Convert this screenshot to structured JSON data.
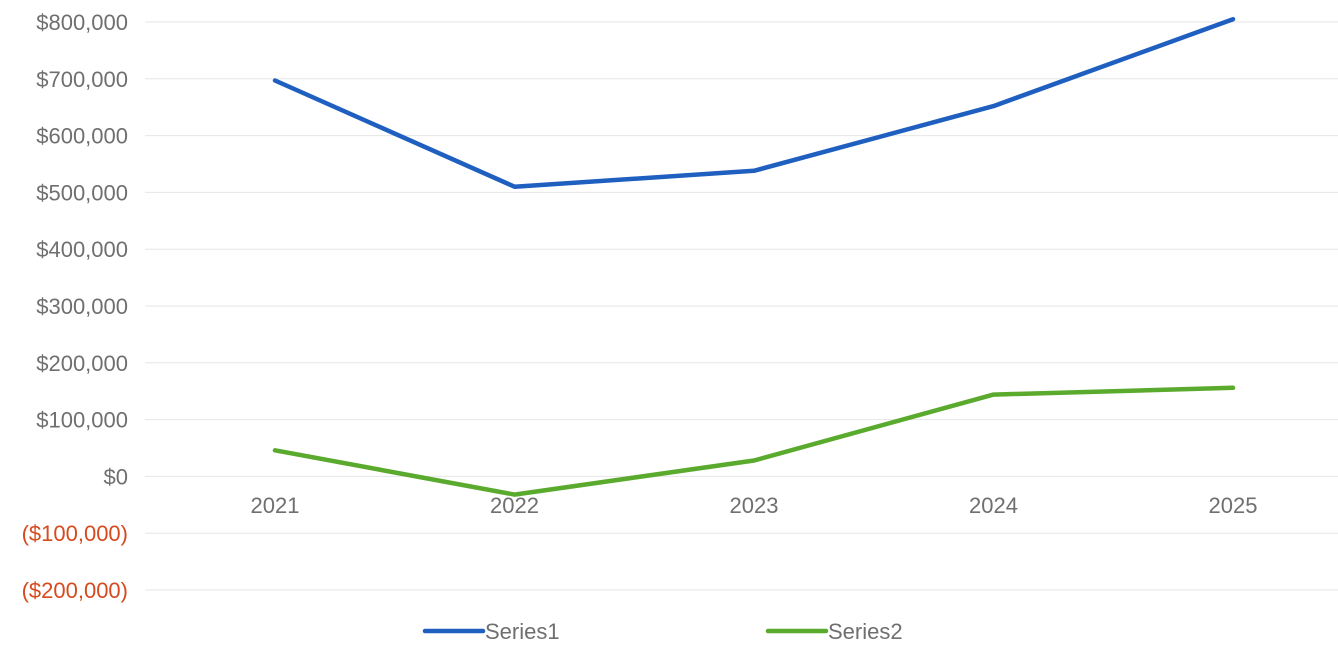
{
  "chart_data": {
    "type": "line",
    "categories": [
      "2021",
      "2022",
      "2023",
      "2024",
      "2025"
    ],
    "series": [
      {
        "name": "Series1",
        "values": [
          697000,
          510000,
          538000,
          652000,
          805000
        ],
        "color": "#1f5fbf"
      },
      {
        "name": "Series2",
        "values": [
          46000,
          -32000,
          28000,
          144000,
          156000
        ],
        "color": "#5aaa2e"
      }
    ],
    "ylim": [
      -200000,
      800000
    ],
    "yticks": [
      800000,
      700000,
      600000,
      500000,
      400000,
      300000,
      200000,
      100000,
      0,
      -100000,
      -200000
    ],
    "ytick_labels": [
      "$800,000",
      "$700,000",
      "$600,000",
      "$500,000",
      "$400,000",
      "$300,000",
      "$200,000",
      "$100,000",
      "$0",
      "($100,000)",
      "($200,000)"
    ],
    "grid": true,
    "legend_position": "bottom",
    "colors": {
      "tick_text": "#6f6f6f",
      "negative_tick_text": "#d64a1e",
      "gridline": "#e6e6e6"
    }
  }
}
